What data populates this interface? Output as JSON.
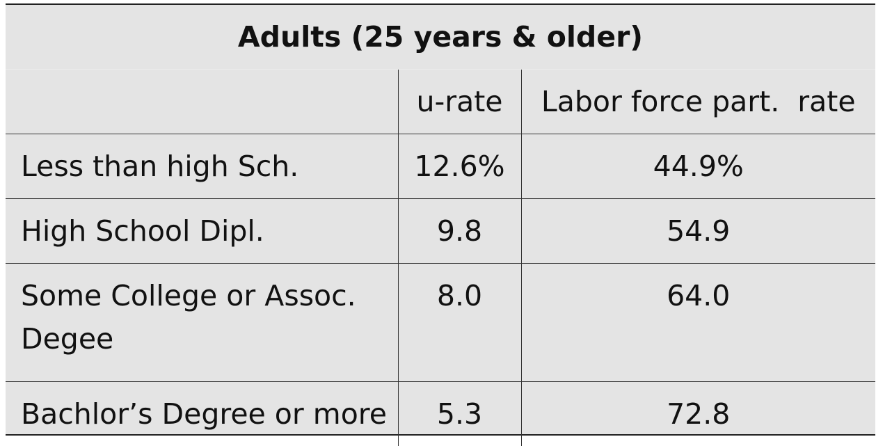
{
  "table": {
    "title": "Adults (25 years & older)",
    "columns": [
      "",
      "u-rate",
      "Labor force part.  rate"
    ],
    "rows": [
      {
        "label": "Less than high Sch.",
        "u_rate": "12.6%",
        "lfpr": "44.9%"
      },
      {
        "label": "High School Dipl.",
        "u_rate": "9.8",
        "lfpr": "54.9"
      },
      {
        "label": "Some College or Assoc. Degee",
        "u_rate": "8.0",
        "lfpr": "64.0"
      },
      {
        "label": "Bachlor’s Degree or more",
        "u_rate": "5.3",
        "lfpr": "72.8"
      }
    ]
  }
}
